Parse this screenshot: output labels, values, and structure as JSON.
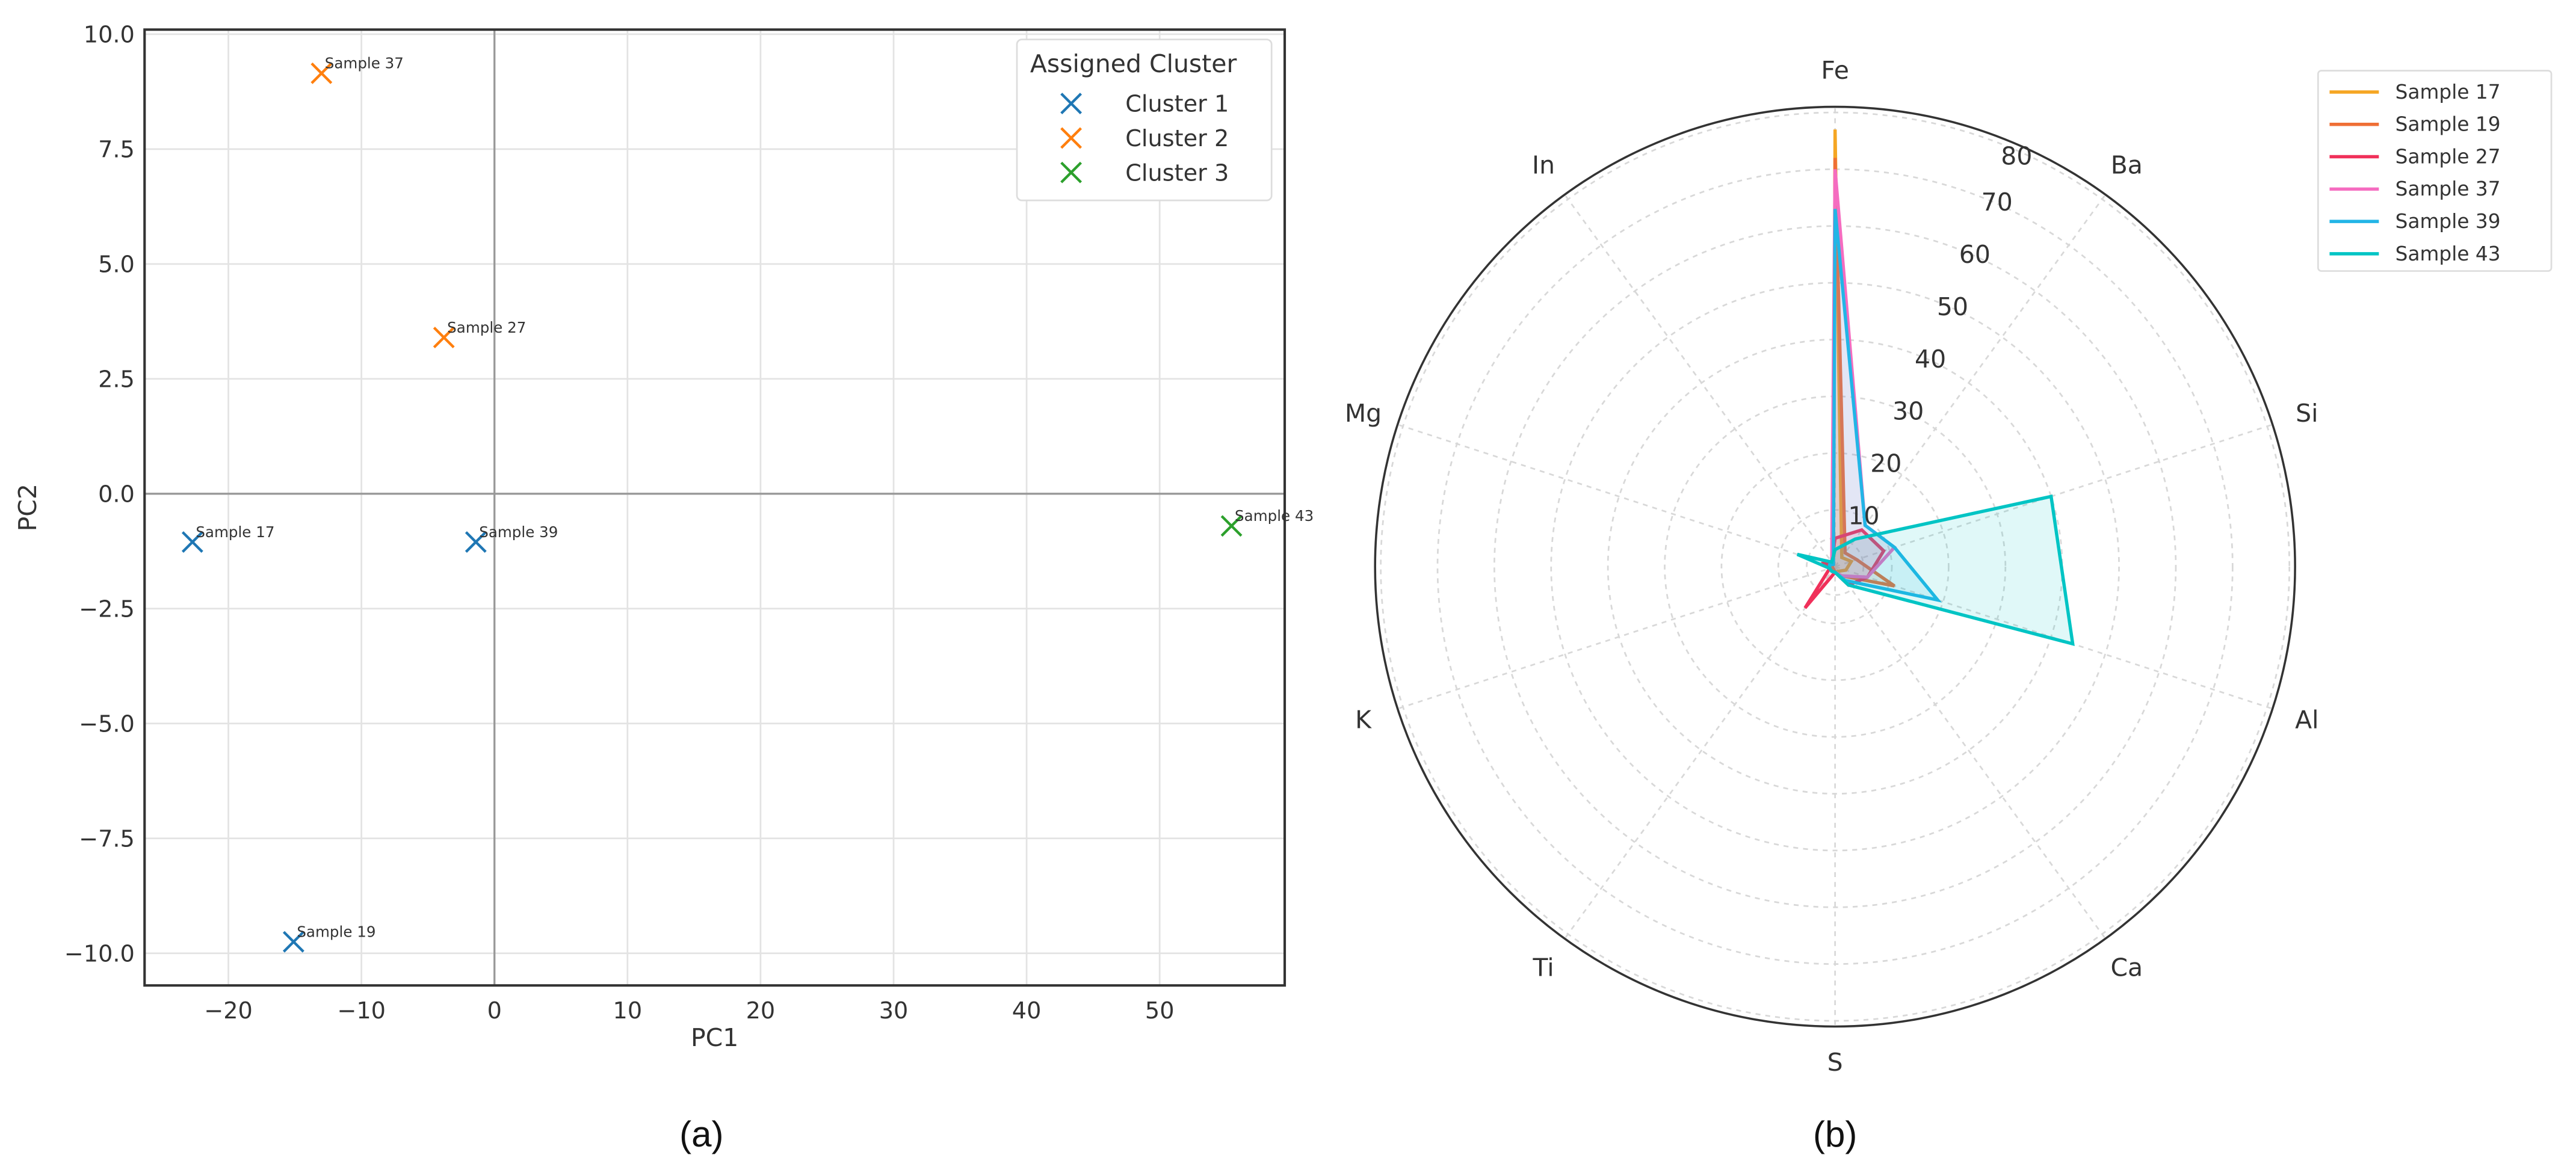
{
  "chart_data": [
    {
      "type": "scatter",
      "panel_label": "(a)",
      "xlabel": "PC1",
      "ylabel": "PC2",
      "xlim": [
        -26.3,
        59.4
      ],
      "ylim": [
        -10.7,
        10.1
      ],
      "xticks": [
        -20,
        -10,
        0,
        10,
        20,
        30,
        40,
        50
      ],
      "yticks": [
        -10.0,
        -7.5,
        -5.0,
        -2.5,
        0.0,
        2.5,
        5.0,
        7.5,
        10.0
      ],
      "grid": true,
      "legend": {
        "title": "Assigned Cluster",
        "placement": "top-right"
      },
      "series": [
        {
          "name": "Cluster 1",
          "color": "#1f77b4",
          "marker": "x",
          "points": [
            {
              "label": "Sample 17",
              "x": -22.7,
              "y": -1.05
            },
            {
              "label": "Sample 19",
              "x": -15.1,
              "y": -9.75
            },
            {
              "label": "Sample 39",
              "x": -1.4,
              "y": -1.05
            }
          ]
        },
        {
          "name": "Cluster 2",
          "color": "#ff7f0e",
          "marker": "x",
          "points": [
            {
              "label": "Sample 37",
              "x": -13.0,
              "y": 9.15
            },
            {
              "label": "Sample 27",
              "x": -3.8,
              "y": 3.4
            }
          ]
        },
        {
          "name": "Cluster 3",
          "color": "#2ca02c",
          "marker": "x",
          "points": [
            {
              "label": "Sample 43",
              "x": 55.4,
              "y": -0.7
            }
          ]
        }
      ]
    },
    {
      "type": "radar",
      "panel_label": "(b)",
      "categories": [
        "Fe",
        "Ba",
        "Si",
        "Al",
        "Ca",
        "S",
        "Ti",
        "K",
        "Mg",
        "In"
      ],
      "rlim": [
        0,
        81
      ],
      "rticks": [
        10,
        20,
        30,
        40,
        50,
        60,
        70,
        80
      ],
      "grid": true,
      "legend": {
        "placement": "top-right"
      },
      "series": [
        {
          "name": "Sample 17",
          "color": "#f5a623",
          "values": [
            77,
            2,
            3,
            2,
            1,
            1,
            0.5,
            0.5,
            0.5,
            0.5
          ]
        },
        {
          "name": "Sample 19",
          "color": "#ef6f35",
          "values": [
            72,
            3,
            4,
            11,
            2,
            1,
            0.5,
            0.5,
            0.5,
            0.5
          ]
        },
        {
          "name": "Sample 27",
          "color": "#f0305a",
          "values": [
            5,
            8,
            9,
            6,
            4,
            1,
            9,
            1,
            2,
            1
          ]
        },
        {
          "name": "Sample 37",
          "color": "#f56cc0",
          "values": [
            70,
            9,
            11,
            6,
            2,
            1,
            1,
            1,
            1,
            1
          ]
        },
        {
          "name": "Sample 39",
          "color": "#22b5e6",
          "values": [
            63,
            9,
            11,
            19,
            3,
            1,
            1,
            1,
            1,
            0.5
          ]
        },
        {
          "name": "Sample 43",
          "color": "#00c4c4",
          "values": [
            3,
            6,
            40,
            44,
            4,
            1,
            1,
            1,
            7,
            1
          ]
        }
      ]
    }
  ]
}
